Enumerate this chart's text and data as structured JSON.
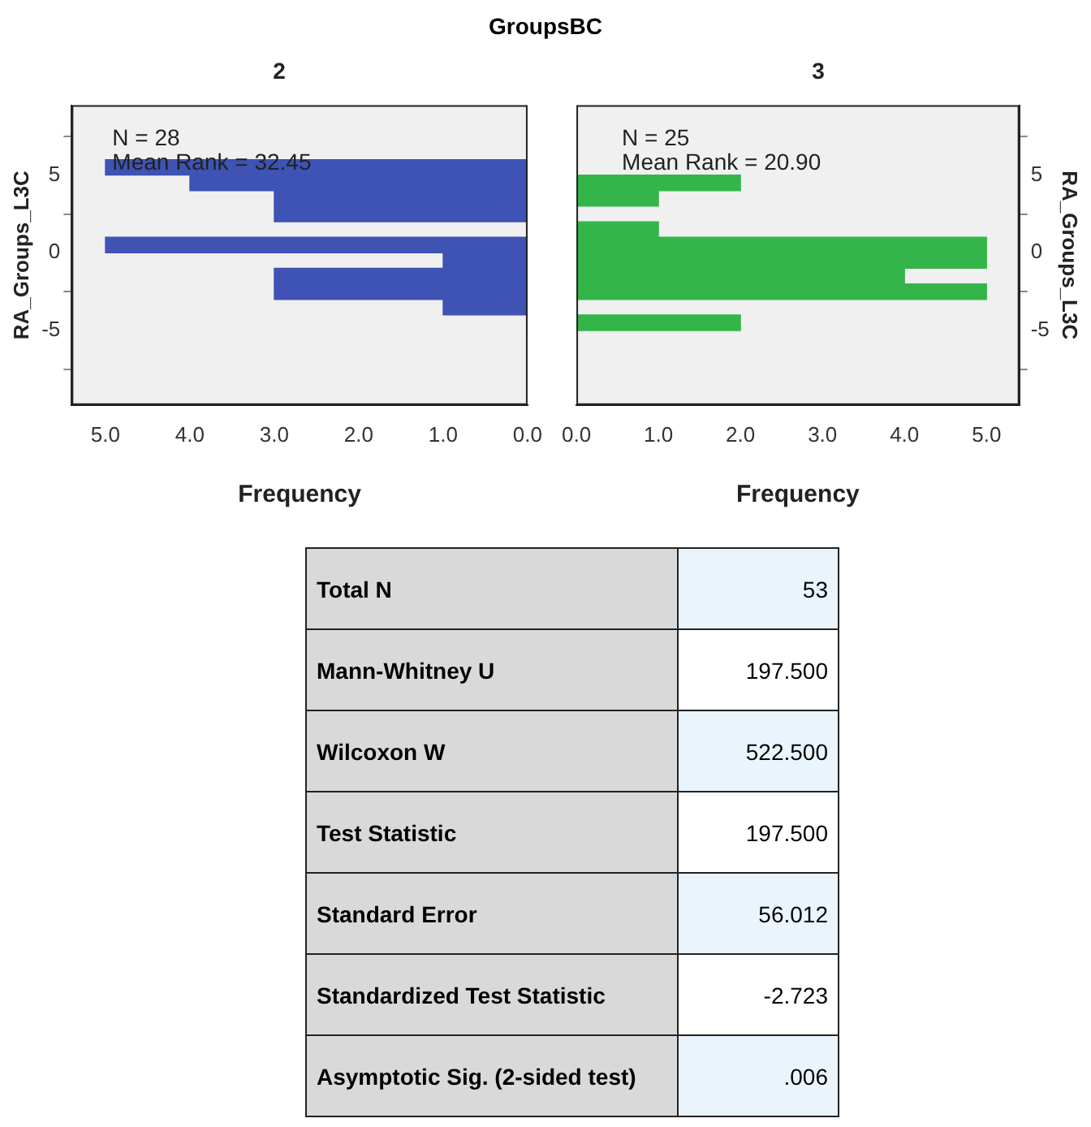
{
  "chart_data": [
    {
      "type": "histogram",
      "title": "GroupsBC",
      "subtitle": "2",
      "orientation": "horizontal",
      "xlabel": "Frequency",
      "ylabel": "RA_Groups_L3C",
      "bins": [
        -5,
        -4,
        -3,
        -2,
        -1,
        0,
        1,
        2,
        3,
        4,
        5,
        6
      ],
      "values": [
        0,
        1,
        3,
        3,
        1,
        5,
        0,
        3,
        3,
        4,
        5
      ],
      "color": "#3e53b4",
      "xlim": [
        5.4,
        0
      ],
      "xticks": [
        {
          "value": 5,
          "label": "5.0"
        },
        {
          "value": 4,
          "label": "4.0"
        },
        {
          "value": 3,
          "label": "3.0"
        },
        {
          "value": 2,
          "label": "2.0"
        },
        {
          "value": 1,
          "label": "1.0"
        },
        {
          "value": 0,
          "label": "0.0"
        }
      ],
      "ylim": [
        -9.8,
        9.5
      ],
      "yticks": [
        -5,
        0,
        5
      ],
      "grid": false,
      "annotations": [
        "N = 28",
        "Mean Rank = 32.45"
      ]
    },
    {
      "type": "histogram",
      "subtitle": "3",
      "orientation": "horizontal",
      "xlabel": "Frequency",
      "ylabel": "RA_Groups_L3C",
      "bins": [
        -5,
        -4,
        -3,
        -2,
        -1,
        0,
        1,
        2,
        3,
        4,
        5,
        6
      ],
      "values": [
        2,
        0,
        5,
        4,
        5,
        5,
        1,
        0,
        1,
        2,
        0
      ],
      "color": "#33b54a",
      "xlim": [
        0,
        5.4
      ],
      "xticks": [
        {
          "value": 0,
          "label": "0.0"
        },
        {
          "value": 1,
          "label": "1.0"
        },
        {
          "value": 2,
          "label": "2.0"
        },
        {
          "value": 3,
          "label": "3.0"
        },
        {
          "value": 4,
          "label": "4.0"
        },
        {
          "value": 5,
          "label": "5.0"
        }
      ],
      "ylim": [
        -9.8,
        9.5
      ],
      "yticks": [
        -5,
        0,
        5
      ],
      "grid": false,
      "annotations": [
        "N = 25",
        "Mean Rank = 20.90"
      ]
    },
    {
      "type": "other",
      "categories": [
        "Total N",
        "Mann-Whitney U",
        "Wilcoxon W",
        "Test Statistic",
        "Standard Error",
        "Standardized Test Statistic",
        "Asymptotic Sig. (2-sided test)"
      ],
      "value_labels": [
        "53",
        "197.500",
        "522.500",
        "197.500",
        "56.012",
        "-2.723",
        ".006"
      ]
    }
  ]
}
